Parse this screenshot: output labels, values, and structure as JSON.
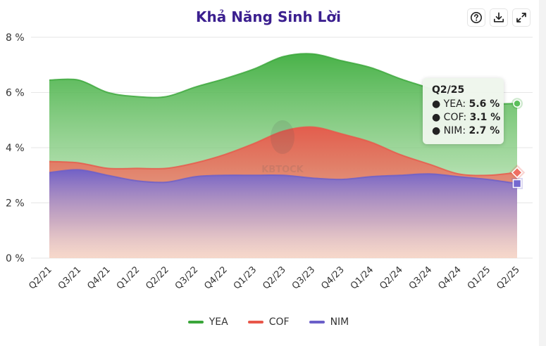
{
  "title": "Khả Năng Sinh Lời",
  "toolbar": {
    "help_icon": "question-circle-icon",
    "download_icon": "download-icon",
    "fullscreen_icon": "expand-icon"
  },
  "watermark": "KBTOCK",
  "tooltip": {
    "title": "Q2/25",
    "rows": [
      {
        "bullet": "●",
        "name": "YEA",
        "value": "5.6 %"
      },
      {
        "bullet": "●",
        "name": "COF",
        "value": "3.1 %"
      },
      {
        "bullet": "●",
        "name": "NIM",
        "value": "2.7 %"
      }
    ]
  },
  "chart_data": {
    "type": "area",
    "title": "Khả Năng Sinh Lời",
    "categories": [
      "Q2/21",
      "Q3/21",
      "Q4/21",
      "Q1/22",
      "Q2/22",
      "Q3/22",
      "Q4/22",
      "Q1/23",
      "Q2/23",
      "Q3/23",
      "Q4/23",
      "Q1/24",
      "Q2/24",
      "Q3/24",
      "Q4/24",
      "Q1/25",
      "Q2/25"
    ],
    "yticks": [
      "0 %",
      "2 %",
      "4 %",
      "6 %",
      "8 %"
    ],
    "ylim": [
      0,
      8
    ],
    "grid": true,
    "legend_position": "bottom",
    "series": [
      {
        "name": "YEA",
        "color": "#3aa63a",
        "values": [
          6.45,
          6.45,
          6.0,
          5.85,
          5.85,
          6.2,
          6.5,
          6.85,
          7.3,
          7.4,
          7.15,
          6.9,
          6.5,
          6.15,
          5.75,
          5.6,
          5.6
        ]
      },
      {
        "name": "COF",
        "color": "#e8574a",
        "values": [
          3.5,
          3.45,
          3.25,
          3.25,
          3.25,
          3.45,
          3.75,
          4.15,
          4.6,
          4.75,
          4.5,
          4.2,
          3.75,
          3.4,
          3.05,
          3.0,
          3.1
        ]
      },
      {
        "name": "NIM",
        "color": "#6b5fc9",
        "values": [
          3.1,
          3.2,
          3.0,
          2.8,
          2.75,
          2.95,
          3.0,
          3.0,
          3.0,
          2.9,
          2.85,
          2.95,
          3.0,
          3.05,
          2.95,
          2.85,
          2.7
        ]
      }
    ]
  }
}
